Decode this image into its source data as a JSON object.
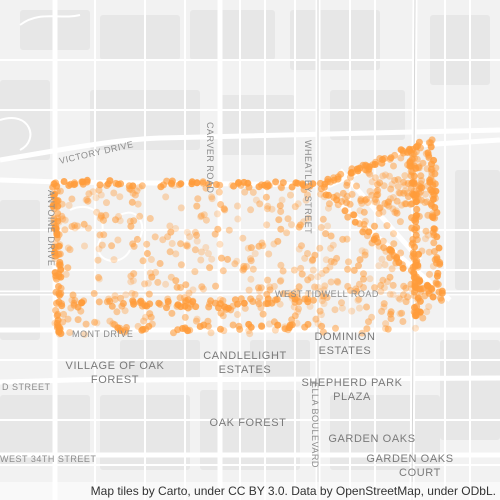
{
  "map": {
    "place_labels": [
      {
        "id": "village-of-oak-forest-line1",
        "text": "VILLAGE OF OAK"
      },
      {
        "id": "village-of-oak-forest-line2",
        "text": "FOREST"
      },
      {
        "id": "candlelight-estates-line1",
        "text": "CANDLELIGHT"
      },
      {
        "id": "candlelight-estates-line2",
        "text": "ESTATES"
      },
      {
        "id": "dominion-estates-line1",
        "text": "DOMINION"
      },
      {
        "id": "dominion-estates-line2",
        "text": "ESTATES"
      },
      {
        "id": "shepherd-park-plaza-line1",
        "text": "SHEPHERD PARK"
      },
      {
        "id": "shepherd-park-plaza-line2",
        "text": "PLAZA"
      },
      {
        "id": "oak-forest",
        "text": "OAK FOREST"
      },
      {
        "id": "garden-oaks",
        "text": "GARDEN OAKS"
      },
      {
        "id": "garden-oaks-court",
        "text": "GARDEN OAKS"
      },
      {
        "id": "court",
        "text": "COURT"
      }
    ],
    "road_labels": [
      {
        "id": "victory-drive",
        "text": "VICTORY DRIVE"
      },
      {
        "id": "carver-road",
        "text": "CARVER ROAD"
      },
      {
        "id": "wheatley-street",
        "text": "WHEATLEY STREET"
      },
      {
        "id": "west-tidwell-road",
        "text": "WEST TIDWELL ROAD"
      },
      {
        "id": "ella-boulevard",
        "text": "ELLA BOULEVARD"
      },
      {
        "id": "west-34th-street",
        "text": "WEST 34TH STREET"
      },
      {
        "id": "street-left",
        "text": "D STREET"
      },
      {
        "id": "mont-drive",
        "text": "MONT DRIVE"
      },
      {
        "id": "antoine-drive",
        "text": "ANTOINE DRIVE"
      }
    ],
    "colors": {
      "background": "#f2f2f2",
      "block": "#e6e6e6",
      "road": "#ffffff",
      "major_road": "#d9d9d9",
      "point": "#ff9c3b"
    }
  },
  "attribution": "Map tiles by Carto, under CC BY 3.0. Data by OpenStreetMap, under ODbL."
}
